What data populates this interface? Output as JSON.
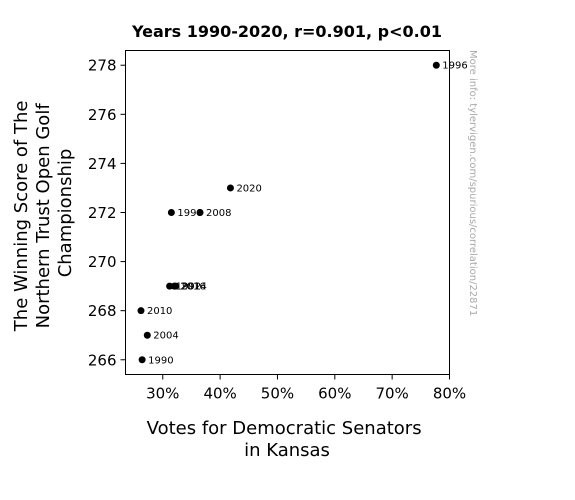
{
  "chart_data": {
    "type": "scatter",
    "title": "Years 1990-2020, r=0.901, p<0.01",
    "xlabel": [
      "Votes for Democratic Senators",
      "in Kansas"
    ],
    "ylabel": [
      "The Winning Score of The",
      "Northern Trust Open Golf",
      "Championship"
    ],
    "xlim": [
      0.235,
      0.8
    ],
    "ylim": [
      265.4,
      278.6
    ],
    "x_ticks": [
      {
        "value": 0.3,
        "label": "30%"
      },
      {
        "value": 0.4,
        "label": "40%"
      },
      {
        "value": 0.5,
        "label": "50%"
      },
      {
        "value": 0.6,
        "label": "60%"
      },
      {
        "value": 0.7,
        "label": "70%"
      },
      {
        "value": 0.8,
        "label": "80%"
      }
    ],
    "y_ticks": [
      {
        "value": 266,
        "label": "266"
      },
      {
        "value": 268,
        "label": "268"
      },
      {
        "value": 270,
        "label": "270"
      },
      {
        "value": 272,
        "label": "272"
      },
      {
        "value": 274,
        "label": "274"
      },
      {
        "value": 276,
        "label": "276"
      },
      {
        "value": 278,
        "label": "278"
      }
    ],
    "points": [
      {
        "label": "1990",
        "x": 0.264,
        "y": 266
      },
      {
        "label": "1992",
        "x": 0.312,
        "y": 269
      },
      {
        "label": "1996",
        "x": 0.777,
        "y": 278
      },
      {
        "label": "1998",
        "x": 0.315,
        "y": 272
      },
      {
        "label": "2004",
        "x": 0.273,
        "y": 267
      },
      {
        "label": "2008",
        "x": 0.365,
        "y": 272
      },
      {
        "label": "2010",
        "x": 0.262,
        "y": 268
      },
      {
        "label": "2014",
        "x": 0.322,
        "y": 269
      },
      {
        "label": "2016",
        "x": 0.32,
        "y": 269
      },
      {
        "label": "2020",
        "x": 0.418,
        "y": 273
      }
    ],
    "marker_color": "#000000",
    "grid": false,
    "legend": "none"
  },
  "watermark": "More info: tylervigen.com/spurious/correlation/22871"
}
